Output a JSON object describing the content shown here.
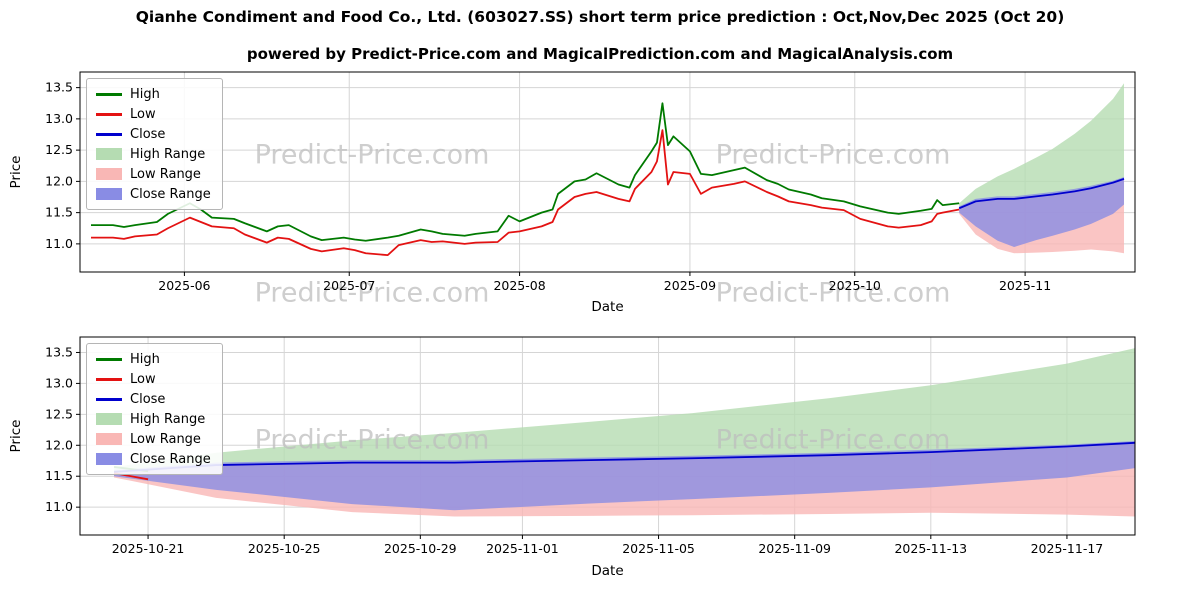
{
  "page": {
    "title": "Qianhe Condiment and Food Co., Ltd. (603027.SS) short term price prediction : Oct,Nov,Dec 2025 (Oct 20)",
    "subtitle": "powered by Predict-Price.com and MagicalPrediction.com and MagicalAnalysis.com",
    "watermark": "Predict-Price.com"
  },
  "colors": {
    "high_line": "#007a00",
    "low_line": "#e31212",
    "close_line": "#0000cd",
    "high_range_fill": "#b5dcb2",
    "low_range_fill": "#f9b7b5",
    "close_range_fill": "#898ce4",
    "grid": "#d5d5d5",
    "axis": "#000000",
    "text": "#000000",
    "watermark": "#bdbdbd"
  },
  "legend": {
    "items": [
      {
        "label": "High",
        "type": "line",
        "color_key": "high_line"
      },
      {
        "label": "Low",
        "type": "line",
        "color_key": "low_line"
      },
      {
        "label": "Close",
        "type": "line",
        "color_key": "close_line"
      },
      {
        "label": "High Range",
        "type": "patch",
        "color_key": "high_range_fill"
      },
      {
        "label": "Low Range",
        "type": "patch",
        "color_key": "low_range_fill"
      },
      {
        "label": "Close Range",
        "type": "patch",
        "color_key": "close_range_fill"
      }
    ]
  },
  "chart_data": [
    {
      "type": "line",
      "name": "historical-with-forecast",
      "xlabel": "Date",
      "ylabel": "Price",
      "xlim": [
        "2025-05-13",
        "2025-11-21"
      ],
      "ylim": [
        10.55,
        13.75
      ],
      "yticks": [
        11.0,
        11.5,
        12.0,
        12.5,
        13.0,
        13.5
      ],
      "xticks": [
        {
          "value": "2025-06-01",
          "label": "2025-06"
        },
        {
          "value": "2025-07-01",
          "label": "2025-07"
        },
        {
          "value": "2025-08-01",
          "label": "2025-08"
        },
        {
          "value": "2025-09-01",
          "label": "2025-09"
        },
        {
          "value": "2025-10-01",
          "label": "2025-10"
        },
        {
          "value": "2025-11-01",
          "label": "2025-11"
        }
      ],
      "grid": true,
      "legend_position": "upper-left",
      "x": {
        "hist": [
          "2025-05-15",
          "2025-05-19",
          "2025-05-21",
          "2025-05-23",
          "2025-05-27",
          "2025-05-29",
          "2025-06-02",
          "2025-06-04",
          "2025-06-06",
          "2025-06-10",
          "2025-06-12",
          "2025-06-16",
          "2025-06-18",
          "2025-06-20",
          "2025-06-24",
          "2025-06-26",
          "2025-06-30",
          "2025-07-02",
          "2025-07-04",
          "2025-07-08",
          "2025-07-10",
          "2025-07-14",
          "2025-07-16",
          "2025-07-18",
          "2025-07-22",
          "2025-07-24",
          "2025-07-28",
          "2025-07-30",
          "2025-08-01",
          "2025-08-05",
          "2025-08-07",
          "2025-08-08",
          "2025-08-11",
          "2025-08-13",
          "2025-08-15",
          "2025-08-19",
          "2025-08-21",
          "2025-08-22",
          "2025-08-25",
          "2025-08-26",
          "2025-08-27",
          "2025-08-28",
          "2025-08-29",
          "2025-09-01",
          "2025-09-03",
          "2025-09-05",
          "2025-09-09",
          "2025-09-11",
          "2025-09-15",
          "2025-09-17",
          "2025-09-19",
          "2025-09-23",
          "2025-09-25",
          "2025-09-29",
          "2025-10-02",
          "2025-10-07",
          "2025-10-09",
          "2025-10-13",
          "2025-10-15",
          "2025-10-16",
          "2025-10-17",
          "2025-10-20"
        ],
        "pred": [
          "2025-10-20",
          "2025-10-23",
          "2025-10-27",
          "2025-10-30",
          "2025-11-03",
          "2025-11-06",
          "2025-11-10",
          "2025-11-13",
          "2025-11-17",
          "2025-11-19"
        ]
      },
      "series": [
        {
          "name": "High",
          "color_key": "high_line",
          "x_key": "hist",
          "y": [
            11.3,
            11.3,
            11.27,
            11.3,
            11.35,
            11.48,
            11.65,
            11.55,
            11.42,
            11.4,
            11.33,
            11.2,
            11.28,
            11.3,
            11.12,
            11.06,
            11.1,
            11.07,
            11.05,
            11.1,
            11.13,
            11.23,
            11.2,
            11.16,
            11.13,
            11.16,
            11.2,
            11.45,
            11.36,
            11.5,
            11.55,
            11.8,
            12.0,
            12.03,
            12.13,
            11.95,
            11.9,
            12.1,
            12.48,
            12.62,
            13.25,
            12.58,
            12.72,
            12.48,
            12.12,
            12.1,
            12.18,
            12.22,
            12.02,
            11.96,
            11.87,
            11.79,
            11.73,
            11.68,
            11.6,
            11.5,
            11.48,
            11.53,
            11.56,
            11.7,
            11.62,
            11.65
          ]
        },
        {
          "name": "Low",
          "color_key": "low_line",
          "x_key": "hist",
          "y": [
            11.1,
            11.1,
            11.08,
            11.12,
            11.15,
            11.25,
            11.42,
            11.35,
            11.28,
            11.25,
            11.15,
            11.02,
            11.1,
            11.08,
            10.92,
            10.88,
            10.93,
            10.9,
            10.85,
            10.82,
            10.98,
            11.06,
            11.03,
            11.04,
            11.0,
            11.02,
            11.03,
            11.18,
            11.2,
            11.28,
            11.35,
            11.55,
            11.75,
            11.8,
            11.83,
            11.72,
            11.68,
            11.88,
            12.15,
            12.32,
            12.82,
            11.95,
            12.15,
            12.12,
            11.8,
            11.9,
            11.96,
            12.0,
            11.83,
            11.76,
            11.68,
            11.62,
            11.58,
            11.54,
            11.4,
            11.28,
            11.26,
            11.3,
            11.36,
            11.48,
            11.5,
            11.55
          ]
        },
        {
          "name": "Close",
          "color_key": "close_line",
          "x_key": "pred",
          "y": [
            11.57,
            11.68,
            11.72,
            11.72,
            11.76,
            11.79,
            11.84,
            11.89,
            11.98,
            12.04
          ]
        }
      ],
      "bands": [
        {
          "name": "High Range",
          "color_key": "high_range_fill",
          "x_key": "pred",
          "upper": [
            11.65,
            11.88,
            12.08,
            12.2,
            12.38,
            12.52,
            12.76,
            12.97,
            13.32,
            13.57
          ],
          "lower": [
            11.57,
            11.68,
            11.72,
            11.72,
            11.76,
            11.79,
            11.84,
            11.89,
            11.98,
            12.04
          ]
        },
        {
          "name": "Low Range",
          "color_key": "low_range_fill",
          "x_key": "pred",
          "upper": [
            11.57,
            11.68,
            11.72,
            11.72,
            11.76,
            11.79,
            11.84,
            11.89,
            11.98,
            12.04
          ],
          "lower": [
            11.48,
            11.15,
            10.92,
            10.85,
            10.86,
            10.87,
            10.89,
            10.91,
            10.88,
            10.85
          ]
        },
        {
          "name": "Close Range",
          "color_key": "close_range_fill",
          "x_key": "pred",
          "upper": [
            11.6,
            11.72,
            11.76,
            11.76,
            11.8,
            11.83,
            11.88,
            11.93,
            12.01,
            12.07
          ],
          "lower": [
            11.5,
            11.28,
            11.05,
            10.95,
            11.06,
            11.13,
            11.23,
            11.32,
            11.48,
            11.63
          ]
        }
      ]
    },
    {
      "type": "line",
      "name": "forecast-detail",
      "xlabel": "Date",
      "ylabel": "Price",
      "xlim": [
        "2025-10-19",
        "2025-11-19"
      ],
      "ylim": [
        10.55,
        13.75
      ],
      "yticks": [
        11.0,
        11.5,
        12.0,
        12.5,
        13.0,
        13.5
      ],
      "xticks": [
        {
          "value": "2025-10-21",
          "label": "2025-10-21"
        },
        {
          "value": "2025-10-25",
          "label": "2025-10-25"
        },
        {
          "value": "2025-10-29",
          "label": "2025-10-29"
        },
        {
          "value": "2025-11-01",
          "label": "2025-11-01"
        },
        {
          "value": "2025-11-05",
          "label": "2025-11-05"
        },
        {
          "value": "2025-11-09",
          "label": "2025-11-09"
        },
        {
          "value": "2025-11-13",
          "label": "2025-11-13"
        },
        {
          "value": "2025-11-17",
          "label": "2025-11-17"
        }
      ],
      "grid": true,
      "legend_position": "upper-left",
      "x": {
        "hist": [
          "2025-10-20",
          "2025-10-21"
        ],
        "pred": [
          "2025-10-20",
          "2025-10-23",
          "2025-10-27",
          "2025-10-30",
          "2025-11-03",
          "2025-11-06",
          "2025-11-10",
          "2025-11-13",
          "2025-11-17",
          "2025-11-19"
        ]
      },
      "series": [
        {
          "name": "High",
          "color_key": "high_line",
          "x_key": "hist",
          "y": [
            11.65,
            11.58
          ]
        },
        {
          "name": "Low",
          "color_key": "low_line",
          "x_key": "hist",
          "y": [
            11.55,
            11.45
          ]
        },
        {
          "name": "Close",
          "color_key": "close_line",
          "x_key": "pred",
          "y": [
            11.57,
            11.68,
            11.72,
            11.72,
            11.76,
            11.79,
            11.84,
            11.89,
            11.98,
            12.04
          ]
        }
      ],
      "bands": [
        {
          "name": "High Range",
          "color_key": "high_range_fill",
          "x_key": "pred",
          "upper": [
            11.65,
            11.88,
            12.08,
            12.2,
            12.38,
            12.52,
            12.76,
            12.97,
            13.32,
            13.57
          ],
          "lower": [
            11.57,
            11.68,
            11.72,
            11.72,
            11.76,
            11.79,
            11.84,
            11.89,
            11.98,
            12.04
          ]
        },
        {
          "name": "Low Range",
          "color_key": "low_range_fill",
          "x_key": "pred",
          "upper": [
            11.57,
            11.68,
            11.72,
            11.72,
            11.76,
            11.79,
            11.84,
            11.89,
            11.98,
            12.04
          ],
          "lower": [
            11.48,
            11.15,
            10.92,
            10.85,
            10.86,
            10.87,
            10.89,
            10.91,
            10.88,
            10.85
          ]
        },
        {
          "name": "Close Range",
          "color_key": "close_range_fill",
          "x_key": "pred",
          "upper": [
            11.6,
            11.72,
            11.76,
            11.76,
            11.8,
            11.83,
            11.88,
            11.93,
            12.01,
            12.07
          ],
          "lower": [
            11.5,
            11.28,
            11.05,
            10.95,
            11.06,
            11.13,
            11.23,
            11.32,
            11.48,
            11.63
          ]
        }
      ]
    }
  ]
}
